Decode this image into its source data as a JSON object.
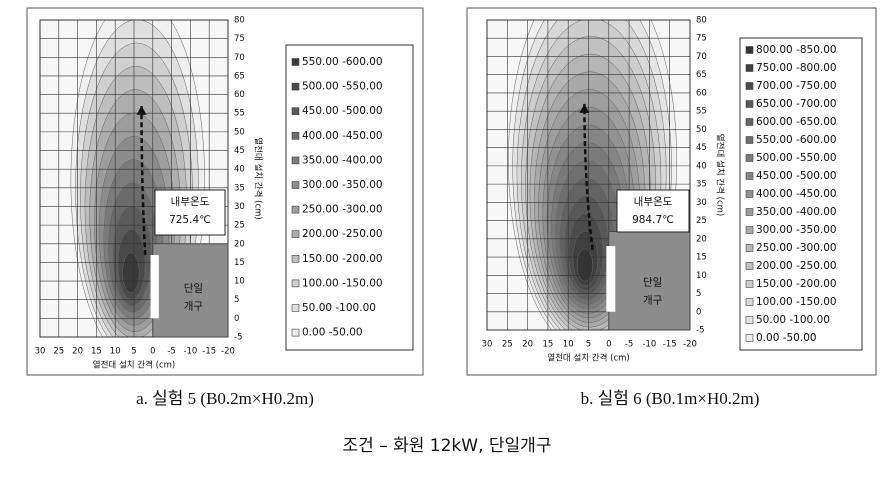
{
  "chart_data": [
    {
      "type": "contour",
      "xlabel": "열전대 설치 간격 (cm)",
      "ylabel": "열전대 설치 간격 (cm)",
      "xlim": [
        30,
        -20
      ],
      "ylim": [
        -5,
        80
      ],
      "xticks": [
        30,
        25,
        20,
        15,
        10,
        5,
        0,
        -5,
        -10,
        -15,
        -20
      ],
      "yticks": [
        -5,
        0,
        5,
        10,
        15,
        20,
        25,
        30,
        35,
        40,
        45,
        50,
        55,
        60,
        65,
        70,
        75,
        80
      ],
      "legend": [
        "550.00 -600.00",
        "500.00 -550.00",
        "450.00 -500.00",
        "400.00 -450.00",
        "350.00 -400.00",
        "300.00 -350.00",
        "250.00 -300.00",
        "200.00 -250.00",
        "150.00 -200.00",
        "100.00 -150.00",
        "50.00 -100.00",
        "0.00 -50.00"
      ],
      "annotation": [
        "내부온도",
        "725.4℃"
      ],
      "opening": [
        "단일",
        "개구"
      ],
      "caption": "a. 실험 5 (B0.2m×H0.2m)"
    },
    {
      "type": "contour",
      "xlabel": "열전대 설치 간격 (cm)",
      "ylabel": "열전대 설치 간격 (cm)",
      "xlim": [
        30,
        -20
      ],
      "ylim": [
        -5,
        80
      ],
      "xticks": [
        30,
        25,
        20,
        15,
        10,
        5,
        0,
        -5,
        -10,
        -15,
        -20
      ],
      "yticks": [
        -5,
        0,
        5,
        10,
        15,
        20,
        25,
        30,
        35,
        40,
        45,
        50,
        55,
        60,
        65,
        70,
        75,
        80
      ],
      "legend": [
        "800.00 -850.00",
        "750.00 -800.00",
        "700.00 -750.00",
        "650.00 -700.00",
        "600.00 -650.00",
        "550.00 -600.00",
        "500.00 -550.00",
        "450.00 -500.00",
        "400.00 -450.00",
        "350.00 -400.00",
        "300.00 -350.00",
        "250.00 -300.00",
        "200.00 -250.00",
        "150.00 -200.00",
        "100.00 -150.00",
        "50.00 -100.00",
        "0.00 -50.00"
      ],
      "annotation": [
        "내부온도",
        "984.7℃"
      ],
      "opening": [
        "단일",
        "개구"
      ],
      "caption": "b. 실험 6 (B0.1m×H0.2m)"
    }
  ],
  "footer": "조건 – 화원 12kW, 단일개구"
}
